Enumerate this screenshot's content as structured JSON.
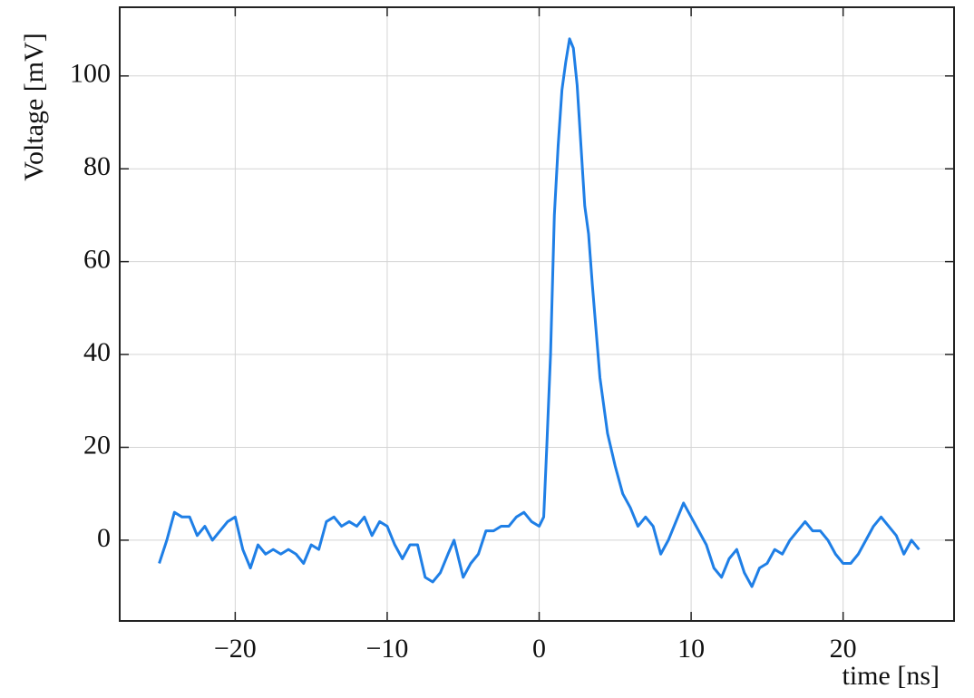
{
  "chart_data": {
    "type": "line",
    "xlabel": "time [ns]",
    "ylabel": "Voltage [mV]",
    "x": [
      -25,
      -24.5,
      -24,
      -23.5,
      -23,
      -22.5,
      -22,
      -21.5,
      -21,
      -20.5,
      -20,
      -19.5,
      -19,
      -18.5,
      -18,
      -17.5,
      -17,
      -16.5,
      -16,
      -15.5,
      -15,
      -14.5,
      -14,
      -13.5,
      -13,
      -12.5,
      -12,
      -11.5,
      -11,
      -10.5,
      -10,
      -9.5,
      -9,
      -8.5,
      -8,
      -7.5,
      -7,
      -6.5,
      -6,
      -5.6,
      -5,
      -4.5,
      -4,
      -3.5,
      -3,
      -2.5,
      -2,
      -1.5,
      -1,
      -0.5,
      0,
      0.3,
      0.5,
      0.75,
      1,
      1.25,
      1.5,
      1.75,
      2,
      2.25,
      2.5,
      2.75,
      3,
      3.25,
      3.5,
      3.75,
      4,
      4.5,
      5,
      5.5,
      6,
      6.5,
      7,
      7.5,
      8,
      8.5,
      9,
      9.5,
      10,
      10.5,
      11,
      11.5,
      12,
      12.5,
      13,
      13.5,
      14,
      14.5,
      15,
      15.5,
      16,
      16.5,
      17,
      17.5,
      18,
      18.5,
      19,
      19.5,
      20,
      20.5,
      21,
      21.5,
      22,
      22.5,
      23,
      23.5,
      24,
      24.5,
      25
    ],
    "values": [
      -5,
      0,
      6,
      5,
      5,
      1,
      3,
      0,
      2,
      4,
      5,
      -2,
      -6,
      -1,
      -3,
      -2,
      -3,
      -2,
      -3,
      -5,
      -1,
      -2,
      4,
      5,
      3,
      4,
      3,
      5,
      1,
      4,
      3,
      -1,
      -4,
      -1,
      -1,
      -8,
      -9,
      -7,
      -3,
      0,
      -8,
      -5,
      -3,
      2,
      2,
      3,
      3,
      5,
      6,
      4,
      3,
      5,
      20,
      40,
      70,
      85,
      97,
      103,
      108,
      106,
      98,
      85,
      72,
      66,
      55,
      45,
      35,
      23,
      16,
      10,
      7,
      3,
      5,
      3,
      -3,
      0,
      4,
      8,
      5,
      2,
      -1,
      -6,
      -8,
      -4,
      -2,
      -7,
      -10,
      -6,
      -5,
      -2,
      -3,
      0,
      2,
      4,
      2,
      2,
      0,
      -3,
      -5,
      -5,
      -3,
      0,
      3,
      5,
      3,
      1,
      -3,
      0,
      -2
    ],
    "color": "#1f7fe6",
    "xlim": [
      -27.6,
      27.3
    ],
    "ylim": [
      -17.4,
      114.8
    ],
    "xticks": [
      {
        "value": -20,
        "label": "−20"
      },
      {
        "value": -10,
        "label": "−10"
      },
      0,
      10,
      20
    ],
    "yticks": [
      0,
      20,
      40,
      60,
      80,
      100
    ],
    "grid": true
  }
}
